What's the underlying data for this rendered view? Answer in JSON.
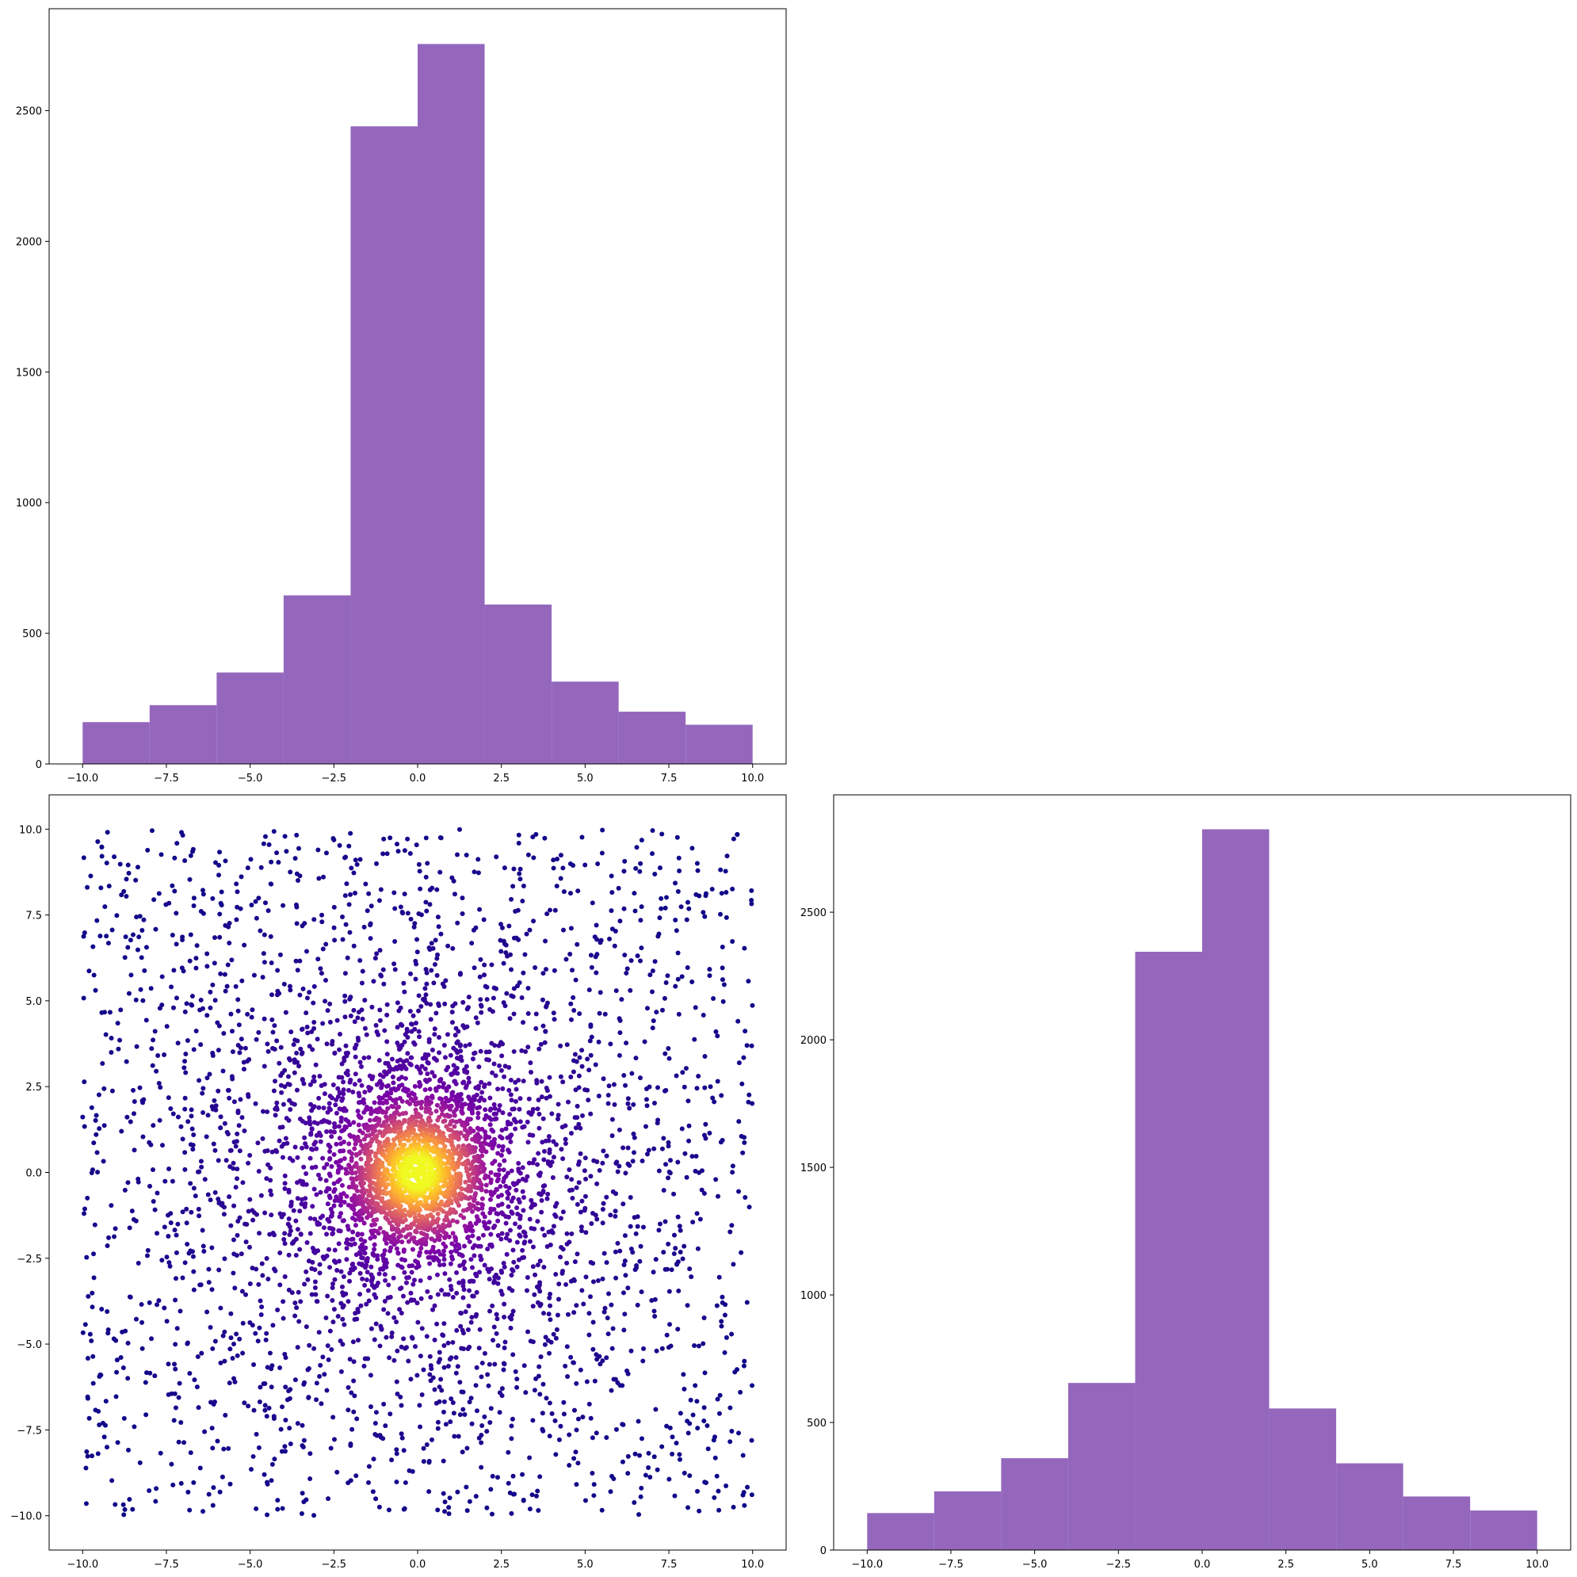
{
  "colors": {
    "bar": "#9467bd",
    "scatter_colormap": "plasma",
    "axes": "#000000",
    "background": "#ffffff"
  },
  "chart_data": [
    {
      "id": "hist_x",
      "type": "bar",
      "title": "",
      "xlabel": "",
      "ylabel": "",
      "bin_edges": [
        -10,
        -8,
        -6,
        -4,
        -2,
        0,
        2,
        4,
        6,
        8,
        10
      ],
      "values": [
        160,
        225,
        350,
        645,
        2440,
        2755,
        610,
        315,
        200,
        150
      ],
      "xlim": [
        -11,
        11
      ],
      "ylim": [
        0,
        2890
      ],
      "xticks": [
        -10.0,
        -7.5,
        -5.0,
        -2.5,
        0.0,
        2.5,
        5.0,
        7.5,
        10.0
      ],
      "xtick_labels": [
        "−10.0",
        "−7.5",
        "−5.0",
        "−2.5",
        "0.0",
        "2.5",
        "5.0",
        "7.5",
        "10.0"
      ],
      "yticks": [
        0,
        500,
        1000,
        1500,
        2000,
        2500
      ],
      "ytick_labels": [
        "0",
        "500",
        "1000",
        "1500",
        "2000",
        "2500"
      ],
      "grid": false,
      "color": "#9467bd"
    },
    {
      "id": "scatter_xy",
      "type": "scatter",
      "title": "",
      "xlabel": "",
      "ylabel": "",
      "description_of_points": "about 5000 points within [-10,10] x [-10,10], dense near the origin; color by density (plasma colormap: dark purple far, yellow at center)",
      "n_points": 5000,
      "x_range": [
        -10,
        10
      ],
      "y_range": [
        -10,
        10
      ],
      "xlim": [
        -11,
        11
      ],
      "ylim": [
        -11,
        11
      ],
      "xticks": [
        -10.0,
        -7.5,
        -5.0,
        -2.5,
        0.0,
        2.5,
        5.0,
        7.5,
        10.0
      ],
      "xtick_labels": [
        "−10.0",
        "−7.5",
        "−5.0",
        "−2.5",
        "0.0",
        "2.5",
        "5.0",
        "7.5",
        "10.0"
      ],
      "yticks": [
        -10.0,
        -7.5,
        -5.0,
        -2.5,
        0.0,
        2.5,
        5.0,
        7.5,
        10.0
      ],
      "ytick_labels": [
        "−10.0",
        "−7.5",
        "−5.0",
        "−2.5",
        "0.0",
        "2.5",
        "5.0",
        "7.5",
        "10.0"
      ],
      "grid": false
    },
    {
      "id": "hist_y",
      "type": "bar",
      "title": "",
      "xlabel": "",
      "ylabel": "",
      "bin_edges": [
        -10,
        -8,
        -6,
        -4,
        -2,
        0,
        2,
        4,
        6,
        8,
        10
      ],
      "values": [
        145,
        230,
        360,
        655,
        2345,
        2825,
        555,
        340,
        210,
        155
      ],
      "xlim": [
        -11,
        11
      ],
      "ylim": [
        0,
        2960
      ],
      "xticks": [
        -10.0,
        -7.5,
        -5.0,
        -2.5,
        0.0,
        2.5,
        5.0,
        7.5,
        10.0
      ],
      "xtick_labels": [
        "−10.0",
        "−7.5",
        "−5.0",
        "−2.5",
        "0.0",
        "2.5",
        "5.0",
        "7.5",
        "10.0"
      ],
      "yticks": [
        0,
        500,
        1000,
        1500,
        2000,
        2500
      ],
      "ytick_labels": [
        "0",
        "500",
        "1000",
        "1500",
        "2000",
        "2500"
      ],
      "grid": false,
      "color": "#9467bd"
    }
  ]
}
